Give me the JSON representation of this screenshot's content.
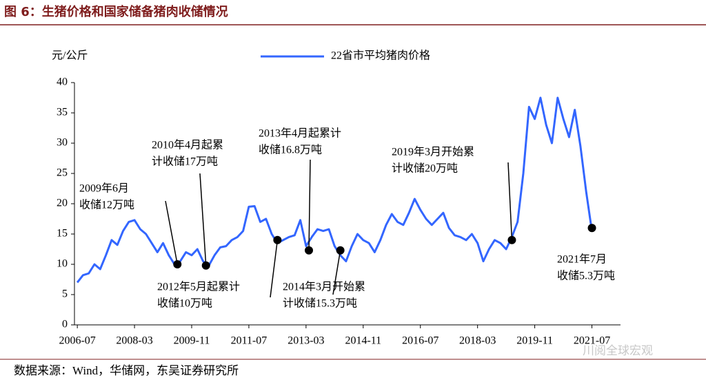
{
  "chart_data": {
    "type": "line",
    "title": "图 6：生猪价格和国家储备猪肉收储情况",
    "y_label": "元/公斤",
    "source": "数据来源：Wind，华储网，东吴证券研究所",
    "watermark": "川阅全球宏观",
    "x": [
      "2006-07",
      "2006-09",
      "2006-11",
      "2007-01",
      "2007-03",
      "2007-05",
      "2007-07",
      "2007-09",
      "2007-11",
      "2008-01",
      "2008-03",
      "2008-05",
      "2008-07",
      "2008-09",
      "2008-11",
      "2009-01",
      "2009-03",
      "2009-05",
      "2009-07",
      "2009-09",
      "2009-11",
      "2010-01",
      "2010-03",
      "2010-05",
      "2010-07",
      "2010-09",
      "2010-11",
      "2011-01",
      "2011-03",
      "2011-05",
      "2011-07",
      "2011-09",
      "2011-11",
      "2012-01",
      "2012-03",
      "2012-05",
      "2012-07",
      "2012-09",
      "2012-11",
      "2013-01",
      "2013-03",
      "2013-05",
      "2013-07",
      "2013-09",
      "2013-11",
      "2014-01",
      "2014-03",
      "2014-05",
      "2014-07",
      "2014-09",
      "2014-11",
      "2015-01",
      "2015-03",
      "2015-05",
      "2015-07",
      "2015-09",
      "2015-11",
      "2016-01",
      "2016-03",
      "2016-05",
      "2016-07",
      "2016-09",
      "2016-11",
      "2017-01",
      "2017-03",
      "2017-05",
      "2017-07",
      "2017-09",
      "2017-11",
      "2018-01",
      "2018-03",
      "2018-05",
      "2018-07",
      "2018-09",
      "2018-11",
      "2019-01",
      "2019-03",
      "2019-05",
      "2019-07",
      "2019-09",
      "2019-11",
      "2020-01",
      "2020-03",
      "2020-05",
      "2020-07",
      "2020-09",
      "2020-11",
      "2021-01",
      "2021-03",
      "2021-05",
      "2021-07"
    ],
    "series": [
      {
        "name": "22省市平均猪肉价格",
        "color": "#3366ff",
        "values": [
          7.0,
          8.2,
          8.5,
          10.0,
          9.2,
          11.5,
          14.0,
          13.2,
          15.5,
          17.0,
          17.3,
          15.8,
          15.0,
          13.5,
          12.0,
          13.5,
          11.5,
          10.0,
          10.5,
          12.0,
          11.5,
          12.5,
          10.5,
          9.8,
          11.5,
          12.8,
          13.0,
          14.0,
          14.5,
          15.5,
          19.5,
          19.6,
          17.0,
          17.5,
          15.0,
          13.5,
          14.0,
          14.5,
          14.8,
          17.3,
          13.0,
          14.5,
          15.8,
          15.5,
          15.8,
          13.0,
          11.5,
          10.5,
          13.0,
          15.0,
          14.0,
          13.5,
          12.0,
          14.0,
          16.5,
          18.3,
          17.0,
          16.5,
          18.5,
          20.8,
          19.0,
          17.5,
          16.5,
          17.5,
          18.5,
          16.0,
          14.8,
          14.5,
          14.0,
          15.0,
          13.5,
          10.5,
          12.5,
          14.0,
          13.5,
          12.5,
          14.5,
          17.0,
          25.0,
          36.0,
          34.0,
          37.5,
          33.0,
          30.0,
          37.5,
          34.0,
          31.0,
          35.5,
          29.5,
          22.0,
          15.5
        ]
      }
    ],
    "xlim": [
      "2006-06",
      "2022-05"
    ],
    "xticks": [
      "2006-07",
      "2008-03",
      "2009-11",
      "2011-07",
      "2013-03",
      "2014-11",
      "2016-07",
      "2018-03",
      "2019-11",
      "2021-07"
    ],
    "ylim": [
      0,
      40
    ],
    "yticks": [
      0,
      5,
      10,
      15,
      20,
      25,
      30,
      35,
      40
    ],
    "legend": "top",
    "annotations": [
      {
        "text": [
          "2009年6月",
          "收储12万吨"
        ],
        "x": "2009-06",
        "y": 10
      },
      {
        "text": [
          "2010年4月起累",
          "计收储17万吨"
        ],
        "x": "2010-04",
        "y": 9.8
      },
      {
        "text": [
          "2012年5月起累计",
          "收储10万吨"
        ],
        "x": "2012-05",
        "y": 14
      },
      {
        "text": [
          "2013年4月起累计",
          "收储16.8万吨"
        ],
        "x": "2013-04",
        "y": 12.3
      },
      {
        "text": [
          "2014年3月开始累",
          "计收储15.3万吨"
        ],
        "x": "2014-03",
        "y": 12.3
      },
      {
        "text": [
          "2019年3月开始累",
          "计收储20万吨"
        ],
        "x": "2019-03",
        "y": 14
      },
      {
        "text": [
          "2021年7月",
          "收储5.3万吨"
        ],
        "x": "2021-07",
        "y": 16
      }
    ]
  }
}
